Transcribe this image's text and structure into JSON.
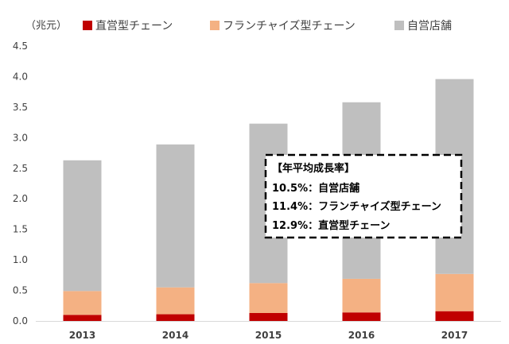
{
  "chart_data": {
    "type": "bar",
    "stacked": true,
    "unit_label": "（兆元）",
    "categories": [
      "2013",
      "2014",
      "2015",
      "2016",
      "2017"
    ],
    "series": [
      {
        "name": "直営型チェーン",
        "color": "#c00000",
        "values": [
          0.1,
          0.11,
          0.13,
          0.14,
          0.16
        ]
      },
      {
        "name": "フランチャイズ型チェーン",
        "color": "#f4b183",
        "values": [
          0.39,
          0.44,
          0.49,
          0.55,
          0.61
        ]
      },
      {
        "name": "自営店舗",
        "color": "#bfbfbf",
        "values": [
          2.14,
          2.34,
          2.61,
          2.89,
          3.19
        ]
      }
    ],
    "y_ticks": [
      "0.0",
      "0.5",
      "1.0",
      "1.5",
      "2.0",
      "2.5",
      "3.0",
      "3.5",
      "4.0",
      "4.5"
    ],
    "ylim": [
      0,
      4.5
    ],
    "grid": false,
    "legend_position": "top",
    "annotation": {
      "title": "【年平均成長率】",
      "lines": [
        "10.5%：自営店舗",
        "11.4%：フランチャイズ型チェーン",
        "12.9%：直営型チェーン"
      ]
    }
  }
}
